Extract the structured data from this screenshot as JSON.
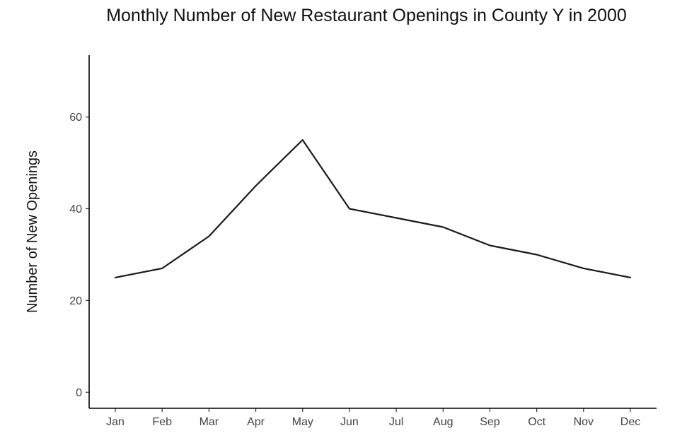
{
  "chart_data": {
    "type": "line",
    "title": "Monthly Number of New Restaurant Openings in County Y in 2000",
    "xlabel": "",
    "ylabel": "Number of New Openings",
    "categories": [
      "Jan",
      "Feb",
      "Mar",
      "Apr",
      "May",
      "Jun",
      "Jul",
      "Aug",
      "Sep",
      "Oct",
      "Nov",
      "Dec"
    ],
    "values": [
      25,
      27,
      34,
      45,
      55,
      40,
      38,
      36,
      32,
      30,
      27,
      25
    ],
    "yticks": [
      0,
      20,
      40,
      60
    ],
    "ylim": [
      -3.5,
      73.5
    ],
    "grid": false,
    "line_color": "#1a1a1a"
  }
}
